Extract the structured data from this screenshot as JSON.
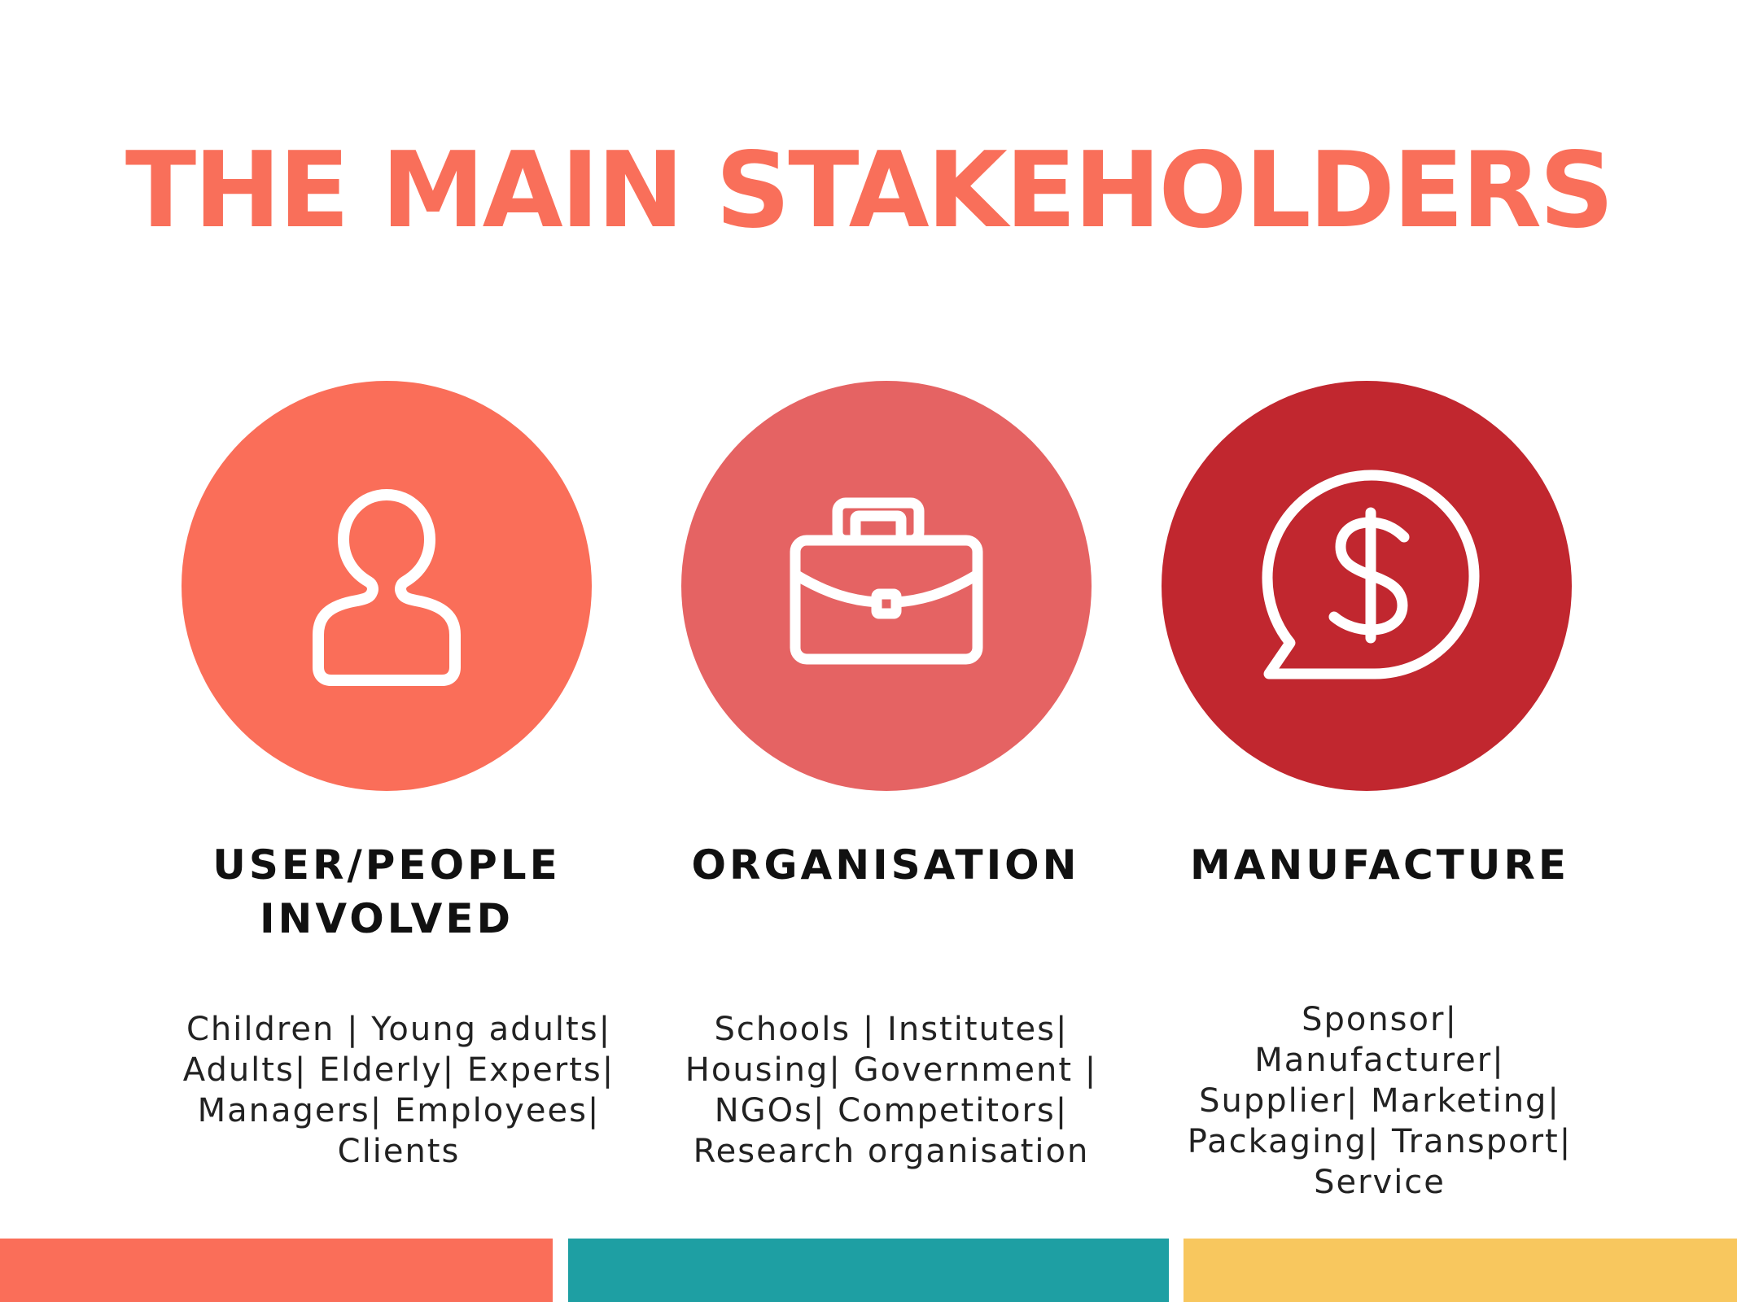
{
  "title": "THE MAIN STAKEHOLDERS",
  "colors": {
    "title": "#f96f5a",
    "circle_1": "#fa6e59",
    "circle_2": "#e56363",
    "circle_3": "#c1272f",
    "icon_stroke": "#ffffff",
    "bar_1": "#fa6e59",
    "bar_2": "#1e9fa3",
    "bar_3": "#f8c75e"
  },
  "columns": [
    {
      "icon": "person-icon",
      "label_line1": "USER/PEOPLE",
      "label_line2": "INVOLVED",
      "description": "Children | Young adults|\nAdults| Elderly| Experts|\nManagers| Employees|\nClients"
    },
    {
      "icon": "briefcase-icon",
      "label_line1": "ORGANISATION",
      "description": "Schools | Institutes|\nHousing| Government |\nNGOs| Competitors|\nResearch organisation"
    },
    {
      "icon": "dollar-speech-bubble-icon",
      "label_line1": "MANUFACTURE",
      "description": "Sponsor|\nManufacturer|\nSupplier| Marketing|\nPackaging| Transport|\nService"
    }
  ]
}
